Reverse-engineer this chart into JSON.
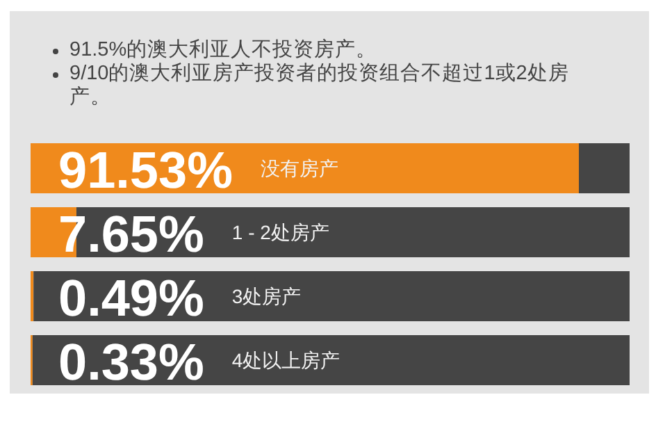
{
  "chart_data": {
    "type": "bar",
    "orientation": "horizontal",
    "stacked": true,
    "annotations": [
      "91.5%的澳大利亚人不投资房产。",
      "9/10的澳大利亚房产投资者的投资组合不超过1或2处房产。"
    ],
    "categories": [
      "没有房产",
      "1 - 2处房产",
      "3处房产",
      "4处以上房产"
    ],
    "xlim": [
      0,
      100
    ],
    "series": [
      {
        "color": "#f08a1c",
        "values": [
          91.53,
          7.65,
          0.49,
          0.33
        ],
        "value_labels": [
          "91.53%",
          "7.65%",
          "0.49%",
          "0.33%"
        ]
      },
      {
        "color": "#454545",
        "values": [
          8.47,
          92.35,
          99.51,
          99.67
        ]
      }
    ]
  }
}
